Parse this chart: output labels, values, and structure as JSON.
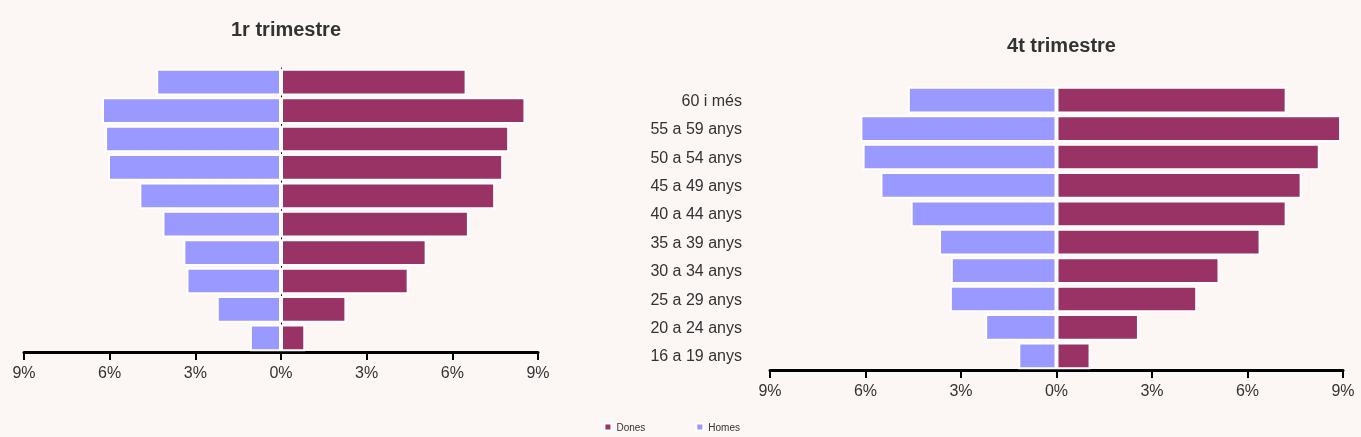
{
  "chart_data": [
    {
      "type": "bar",
      "title": "1r trimestre",
      "orientation": "horizontal",
      "tick_labels": "x",
      "stacked": true,
      "legend": "bottom right",
      "categories": [
        null,
        null,
        null,
        null,
        null,
        null,
        null,
        null,
        null,
        null
      ],
      "series": [
        {
          "name": "Dones",
          "color": "#993366",
          "values": [
            6.5,
            8.56,
            7.99,
            7.78,
            7.5,
            6.58,
            5.1,
            4.47,
            2.29,
            0.85
          ]
        },
        {
          "name": "Homes",
          "color": "#9999ff",
          "values": [
            -4.37,
            -6.27,
            -6.16,
            -6.06,
            -4.96,
            -4.15,
            -3.42,
            -3.31,
            -2.25,
            -1.09
          ]
        }
      ],
      "xlim": [
        -9,
        9
      ],
      "xticks": [
        {
          "value": -9,
          "label": "9%"
        },
        {
          "value": -6,
          "label": "6%"
        },
        {
          "value": -3,
          "label": "3%"
        },
        {
          "value": 0,
          "label": "0%"
        },
        {
          "value": 3,
          "label": "3%"
        },
        {
          "value": 6,
          "label": "6%"
        },
        {
          "value": 9,
          "label": "9%"
        }
      ]
    },
    {
      "type": "bar",
      "title": "4t trimestre",
      "orientation": "horizontal",
      "stacked": true,
      "categories": [
        "60 i més",
        "55 a 59 anys",
        "50 a 54 anys",
        "45 a 49 anys",
        "40 a 44 anys",
        "35 a 39 anys",
        "30 a 34 anys",
        "25 a 29 anys",
        "20 a 24 anys",
        "16 a 19 anys"
      ],
      "series": [
        {
          "color": "#993366",
          "values": [
            7.23,
            8.94,
            8.27,
            7.7,
            7.23,
            6.41,
            5.12,
            4.42,
            2.59,
            1.07
          ]
        },
        {
          "color": "#9999ff",
          "values": [
            -4.67,
            -6.16,
            -6.09,
            -5.53,
            -4.58,
            -3.69,
            -3.32,
            -3.35,
            -2.24,
            -1.2
          ]
        }
      ],
      "xlim": [
        -9,
        9
      ],
      "xticks": [
        {
          "value": -9,
          "label": "9%"
        },
        {
          "value": -6,
          "label": "6%"
        },
        {
          "value": -3,
          "label": "3%"
        },
        {
          "value": 0,
          "label": "0%"
        },
        {
          "value": 3,
          "label": "3%"
        },
        {
          "value": 6,
          "label": "6%"
        },
        {
          "value": 9,
          "label": "9%"
        }
      ]
    }
  ]
}
